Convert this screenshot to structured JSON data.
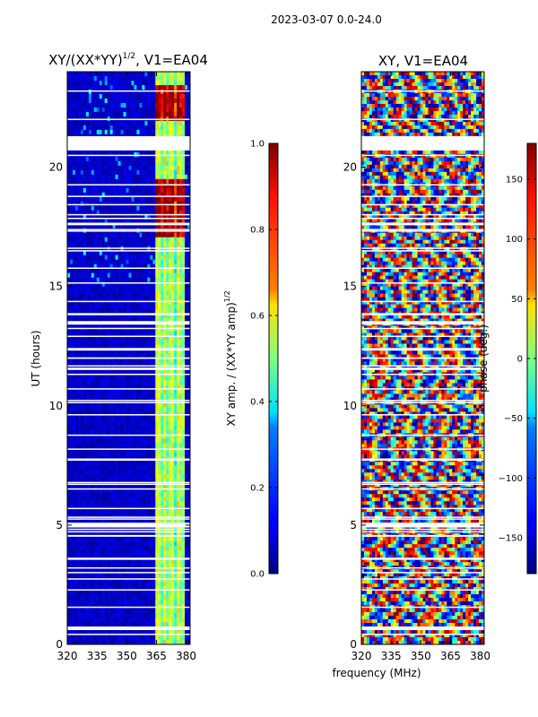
{
  "suptitle": "2023-03-07 0.0-24.0",
  "shared_xlabel": "frequency (MHz)",
  "chart_data": [
    {
      "type": "heatmap",
      "title_main": "XY/(XX*YY)",
      "title_sup": "1/2",
      "title_tail": ", V1=EA04",
      "xlabel": "frequency (MHz)",
      "ylabel": "UT (hours)",
      "xlim": [
        320,
        382
      ],
      "ylim": [
        0,
        24
      ],
      "xticks": [
        320,
        335,
        350,
        365,
        380
      ],
      "yticks": [
        0,
        5,
        10,
        15,
        20
      ],
      "colormap": "jet",
      "colorbar": {
        "label": "XY amp. / (XX*YY amp)",
        "label_sup": "1/2",
        "range": [
          0.0,
          1.0
        ],
        "ticks": [
          "0.0",
          "0.2",
          "0.4",
          "0.6",
          "0.8",
          "1.0"
        ]
      },
      "approx_bright_band_mhz": [
        364,
        379
      ],
      "approx_bright_hours": [
        [
          17,
          19.5
        ],
        [
          22,
          23.5
        ]
      ]
    },
    {
      "type": "heatmap",
      "title": "XY, V1=EA04",
      "xlabel": "frequency (MHz)",
      "xlim": [
        320,
        382
      ],
      "ylim": [
        0,
        24
      ],
      "xticks": [
        320,
        335,
        350,
        365,
        380
      ],
      "yticks": [
        0,
        5,
        10,
        15,
        20
      ],
      "colormap": "jet",
      "colorbar": {
        "label": "phase (deg.)",
        "range": [
          -180,
          180
        ],
        "ticks": [
          "150",
          "100",
          "50",
          "0",
          "−50",
          "−100",
          "−150"
        ]
      }
    }
  ],
  "white_gap_hours": [
    [
      20.7,
      21.3
    ],
    [
      4.9,
      5.1
    ],
    [
      0.6,
      0.75
    ],
    [
      13.4,
      13.55
    ],
    [
      11.5,
      11.6
    ]
  ]
}
